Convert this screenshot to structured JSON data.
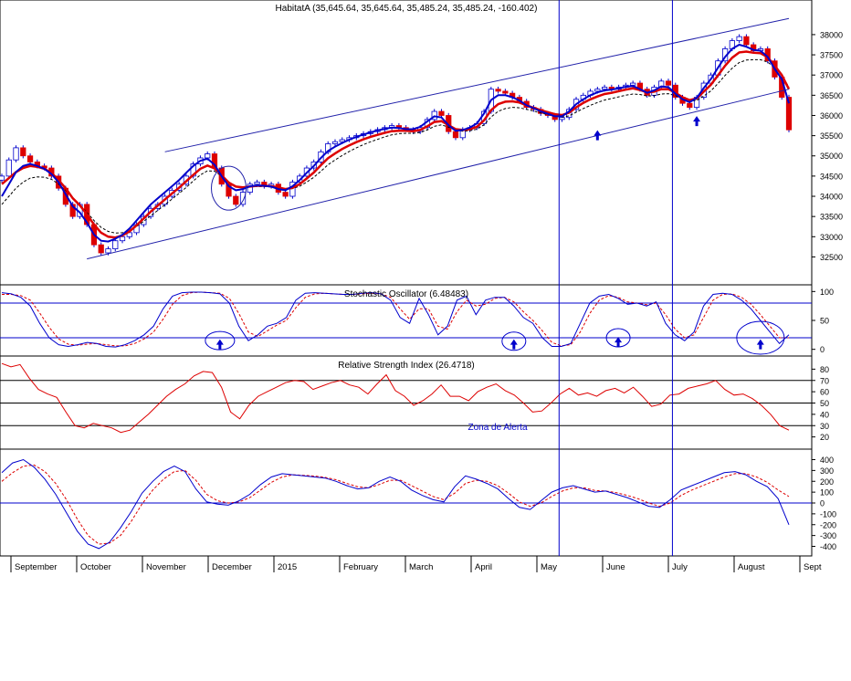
{
  "chart_data": {
    "type": "line",
    "colors": {
      "price_up": "#ffffff",
      "price_down": "#dd0000",
      "candle_outline": "#0000cc",
      "fast_ma": "#0000cc",
      "slow_ma": "#dd0000",
      "dotted_ma": "#000000",
      "channel": "#2222aa",
      "guides": "#0000cc",
      "oscillator_main": "#0000cc",
      "oscillator_signal": "#dd0000",
      "rsi": "#dd0000",
      "alert_text": "#0000cc",
      "grid": "#000000"
    },
    "x_labels": [
      "September",
      "October",
      "November",
      "December",
      "2015",
      "February",
      "March",
      "April",
      "May",
      "June",
      "July",
      "August",
      "Sept"
    ],
    "price_panel": {
      "title": "HabitatA (35,645.64, 35,645.64, 35,485.24, 35,485.24, -160.402)",
      "ylim": [
        31900,
        38450
      ],
      "y_ticks": [
        32500,
        33000,
        33500,
        34000,
        34500,
        35000,
        35500,
        36000,
        36500,
        37000,
        37500,
        38000
      ],
      "y_tick_labels": [
        "32500",
        "33000",
        "33500",
        "34000",
        "34500",
        "35000",
        "35500",
        "36000",
        "36500",
        "37000",
        "37500",
        "38000"
      ],
      "close": [
        34500,
        34900,
        35200,
        35000,
        34850,
        34750,
        34700,
        34500,
        34200,
        33800,
        33500,
        33800,
        33300,
        32800,
        32600,
        32700,
        32900,
        33000,
        33100,
        33300,
        33500,
        33700,
        33800,
        34000,
        34150,
        34300,
        34500,
        34800,
        34950,
        35050,
        34700,
        34300,
        34000,
        33800,
        34100,
        34300,
        34350,
        34250,
        34300,
        34100,
        34000,
        34350,
        34500,
        34700,
        34850,
        35100,
        35300,
        35350,
        35400,
        35450,
        35500,
        35550,
        35600,
        35650,
        35700,
        35750,
        35700,
        35650,
        35600,
        35700,
        35900,
        36100,
        36000,
        35600,
        35450,
        35650,
        35700,
        35800,
        36100,
        36650,
        36600,
        36550,
        36450,
        36350,
        36200,
        36150,
        36050,
        36000,
        35900,
        35950,
        36150,
        36400,
        36500,
        36600,
        36650,
        36700,
        36650,
        36700,
        36750,
        36800,
        36650,
        36500,
        36700,
        36850,
        36750,
        36450,
        36300,
        36200,
        36450,
        36800,
        37000,
        37350,
        37650,
        37850,
        37950,
        37750,
        37600,
        37650,
        37350,
        36950,
        36450,
        35645
      ],
      "fast_ma": [
        34000,
        34300,
        34600,
        34750,
        34800,
        34750,
        34680,
        34550,
        34350,
        34050,
        33750,
        33600,
        33350,
        33050,
        32900,
        32880,
        32950,
        33050,
        33200,
        33400,
        33600,
        33800,
        33950,
        34100,
        34250,
        34400,
        34580,
        34750,
        34880,
        34930,
        34780,
        34500,
        34250,
        34150,
        34180,
        34250,
        34270,
        34260,
        34240,
        34180,
        34150,
        34250,
        34400,
        34580,
        34750,
        34950,
        35120,
        35230,
        35320,
        35400,
        35470,
        35530,
        35580,
        35630,
        35670,
        35700,
        35690,
        35660,
        35660,
        35720,
        35850,
        35980,
        35950,
        35760,
        35620,
        35640,
        35700,
        35800,
        36050,
        36380,
        36500,
        36500,
        36450,
        36370,
        36250,
        36180,
        36100,
        36040,
        35980,
        35980,
        36100,
        36280,
        36400,
        36500,
        36570,
        36620,
        36640,
        36670,
        36710,
        36730,
        36650,
        36560,
        36620,
        36720,
        36700,
        36540,
        36400,
        36330,
        36430,
        36680,
        36900,
        37180,
        37450,
        37650,
        37750,
        37700,
        37620,
        37600,
        37450,
        37150,
        36900,
        36300
      ],
      "slow_ma": [
        34300,
        34450,
        34600,
        34700,
        34750,
        34730,
        34680,
        34580,
        34400,
        34200,
        33950,
        33780,
        33550,
        33300,
        33100,
        33000,
        32980,
        33030,
        33130,
        33280,
        33450,
        33620,
        33770,
        33920,
        34070,
        34210,
        34370,
        34530,
        34680,
        34760,
        34690,
        34520,
        34340,
        34240,
        34220,
        34240,
        34260,
        34260,
        34250,
        34220,
        34180,
        34210,
        34300,
        34440,
        34590,
        34770,
        34940,
        35060,
        35170,
        35260,
        35340,
        35410,
        35470,
        35520,
        35570,
        35610,
        35620,
        35620,
        35610,
        35640,
        35730,
        35840,
        35860,
        35760,
        35660,
        35640,
        35660,
        35720,
        35880,
        36130,
        36280,
        36340,
        36350,
        36320,
        36250,
        36190,
        36130,
        36080,
        36030,
        36010,
        36070,
        36200,
        36310,
        36400,
        36470,
        36530,
        36560,
        36600,
        36640,
        36670,
        36630,
        36570,
        36590,
        36650,
        36650,
        36560,
        36450,
        36380,
        36420,
        36590,
        36760,
        36990,
        37230,
        37430,
        37560,
        37580,
        37550,
        37540,
        37440,
        37230,
        37000,
        36650
      ],
      "dotted_ma": [
        33800,
        34000,
        34200,
        34350,
        34450,
        34480,
        34470,
        34420,
        34300,
        34150,
        33950,
        33800,
        33600,
        33400,
        33230,
        33130,
        33090,
        33100,
        33150,
        33250,
        33380,
        33520,
        33650,
        33790,
        33930,
        34070,
        34220,
        34380,
        34530,
        34630,
        34620,
        34500,
        34350,
        34250,
        34220,
        34230,
        34240,
        34240,
        34230,
        34200,
        34170,
        34190,
        34250,
        34350,
        34470,
        34620,
        34780,
        34900,
        35010,
        35110,
        35200,
        35280,
        35350,
        35410,
        35470,
        35520,
        35550,
        35560,
        35560,
        35580,
        35640,
        35730,
        35770,
        35710,
        35640,
        35610,
        35620,
        35660,
        35770,
        35960,
        36100,
        36170,
        36200,
        36190,
        36150,
        36110,
        36060,
        36020,
        35980,
        35960,
        35990,
        36080,
        36170,
        36250,
        36320,
        36380,
        36420,
        36460,
        36500,
        36530,
        36520,
        36480,
        36490,
        36530,
        36540,
        36490,
        36420,
        36360,
        36370,
        36480,
        36610,
        36790,
        36990,
        37170,
        37310,
        37370,
        37380,
        37380,
        37320,
        37180,
        37000,
        36700
      ],
      "channel": {
        "upper": [
          {
            "i": 23,
            "v": 35100
          },
          {
            "i": 111,
            "v": 38400
          }
        ],
        "lower": [
          {
            "i": 12,
            "v": 32450
          },
          {
            "i": 111,
            "v": 36650
          }
        ]
      },
      "circle": {
        "i": 32,
        "v": 34200
      }
    },
    "stochastic": {
      "title": "Stochastic Oscillator (6.48483)",
      "ylim": [
        -10,
        110
      ],
      "y_ticks": [
        0,
        50,
        100
      ],
      "y_tick_labels": [
        "0",
        "50",
        "100"
      ],
      "levels": [
        80,
        20
      ],
      "k": [
        98,
        96,
        90,
        75,
        45,
        20,
        8,
        5,
        8,
        12,
        10,
        5,
        4,
        8,
        15,
        25,
        40,
        70,
        92,
        98,
        99,
        99,
        98,
        96,
        80,
        40,
        15,
        25,
        40,
        45,
        55,
        85,
        97,
        98,
        97,
        96,
        95,
        95,
        97,
        98,
        96,
        85,
        55,
        45,
        88,
        60,
        25,
        40,
        85,
        92,
        60,
        85,
        90,
        90,
        75,
        55,
        45,
        20,
        5,
        5,
        10,
        45,
        80,
        92,
        95,
        88,
        78,
        80,
        75,
        82,
        45,
        25,
        15,
        30,
        75,
        95,
        97,
        95,
        85,
        70,
        50,
        30,
        10,
        25
      ],
      "d": [
        95,
        95,
        93,
        85,
        63,
        38,
        18,
        9,
        7,
        9,
        10,
        8,
        6,
        6,
        10,
        18,
        30,
        52,
        78,
        93,
        98,
        99,
        98,
        97,
        88,
        62,
        30,
        22,
        32,
        42,
        50,
        72,
        90,
        96,
        97,
        96,
        95,
        95,
        96,
        97,
        96,
        90,
        70,
        52,
        70,
        70,
        40,
        35,
        65,
        85,
        75,
        78,
        88,
        90,
        82,
        65,
        50,
        32,
        12,
        6,
        8,
        30,
        62,
        85,
        93,
        90,
        82,
        80,
        77,
        80,
        60,
        35,
        20,
        25,
        55,
        85,
        95,
        96,
        90,
        78,
        60,
        40,
        20,
        20
      ],
      "circles": [
        {
          "i": 23,
          "v": 15
        },
        {
          "i": 54,
          "v": 14
        },
        {
          "i": 65,
          "v": 20
        },
        {
          "i": 80,
          "v": 20
        }
      ]
    },
    "rsi": {
      "title": "Relative Strength Index (26.4718)",
      "ylim": [
        10,
        90
      ],
      "y_ticks": [
        20,
        30,
        40,
        50,
        60,
        70,
        80
      ],
      "y_tick_labels": [
        "20",
        "30",
        "40",
        "50",
        "60",
        "70",
        "80"
      ],
      "levels": [
        70,
        50,
        30
      ],
      "annotation": "Zona de Alerta",
      "values": [
        85,
        82,
        84,
        72,
        62,
        58,
        55,
        42,
        30,
        28,
        32,
        30,
        28,
        24,
        26,
        33,
        40,
        48,
        56,
        62,
        67,
        74,
        78,
        77,
        64,
        42,
        36,
        48,
        56,
        60,
        64,
        68,
        70,
        69,
        62,
        65,
        68,
        70,
        66,
        64,
        58,
        67,
        75,
        61,
        56,
        48,
        52,
        58,
        66,
        56,
        56,
        52,
        60,
        64,
        67,
        61,
        57,
        50,
        42,
        43,
        50,
        58,
        63,
        57,
        59,
        56,
        61,
        63,
        59,
        64,
        56,
        47,
        49,
        57,
        58,
        63,
        65,
        67,
        70,
        62,
        57,
        58,
        54,
        48,
        40,
        30,
        26
      ],
      "tail": [
        84,
        86,
        82,
        76,
        60,
        42,
        30,
        26
      ]
    },
    "macd": {
      "ylim": [
        -480,
        480
      ],
      "y_ticks": [
        -400,
        -300,
        -200,
        -100,
        0,
        100,
        200,
        300,
        400
      ],
      "y_tick_labels": [
        "-400",
        "-300",
        "-200",
        "-100",
        "0",
        "100",
        "200",
        "300",
        "400"
      ],
      "levels": [
        0
      ],
      "main": [
        280,
        370,
        400,
        330,
        220,
        80,
        -90,
        -260,
        -380,
        -420,
        -360,
        -230,
        -80,
        90,
        200,
        290,
        340,
        290,
        130,
        10,
        -10,
        -20,
        20,
        80,
        170,
        240,
        270,
        260,
        250,
        240,
        230,
        200,
        160,
        130,
        140,
        200,
        240,
        200,
        120,
        70,
        30,
        10,
        150,
        250,
        220,
        180,
        130,
        40,
        -40,
        -60,
        20,
        100,
        140,
        160,
        130,
        100,
        110,
        80,
        50,
        10,
        -30,
        -40,
        30,
        120,
        160,
        200,
        240,
        280,
        290,
        260,
        200,
        150,
        40,
        -200
      ],
      "signal": [
        200,
        280,
        340,
        350,
        290,
        180,
        30,
        -150,
        -300,
        -380,
        -370,
        -300,
        -170,
        -10,
        120,
        220,
        290,
        300,
        210,
        80,
        20,
        0,
        10,
        50,
        120,
        190,
        240,
        260,
        255,
        248,
        236,
        215,
        180,
        150,
        140,
        170,
        210,
        210,
        160,
        110,
        60,
        30,
        90,
        180,
        210,
        200,
        160,
        90,
        10,
        -30,
        0,
        60,
        110,
        140,
        140,
        115,
        110,
        95,
        70,
        40,
        0,
        -30,
        0,
        70,
        120,
        160,
        200,
        240,
        270,
        270,
        240,
        190,
        120,
        60
      ]
    },
    "vertical_markers": [
      0.708,
      0.852
    ],
    "arrows": {
      "price": [
        {
          "i": 84,
          "v": 35500
        },
        {
          "i": 98,
          "v": 35850
        }
      ],
      "stochastic": [
        {
          "i": 23,
          "v": 8
        },
        {
          "i": 54,
          "v": 8
        },
        {
          "i": 65,
          "v": 12
        },
        {
          "i": 80,
          "v": 8
        }
      ]
    }
  }
}
